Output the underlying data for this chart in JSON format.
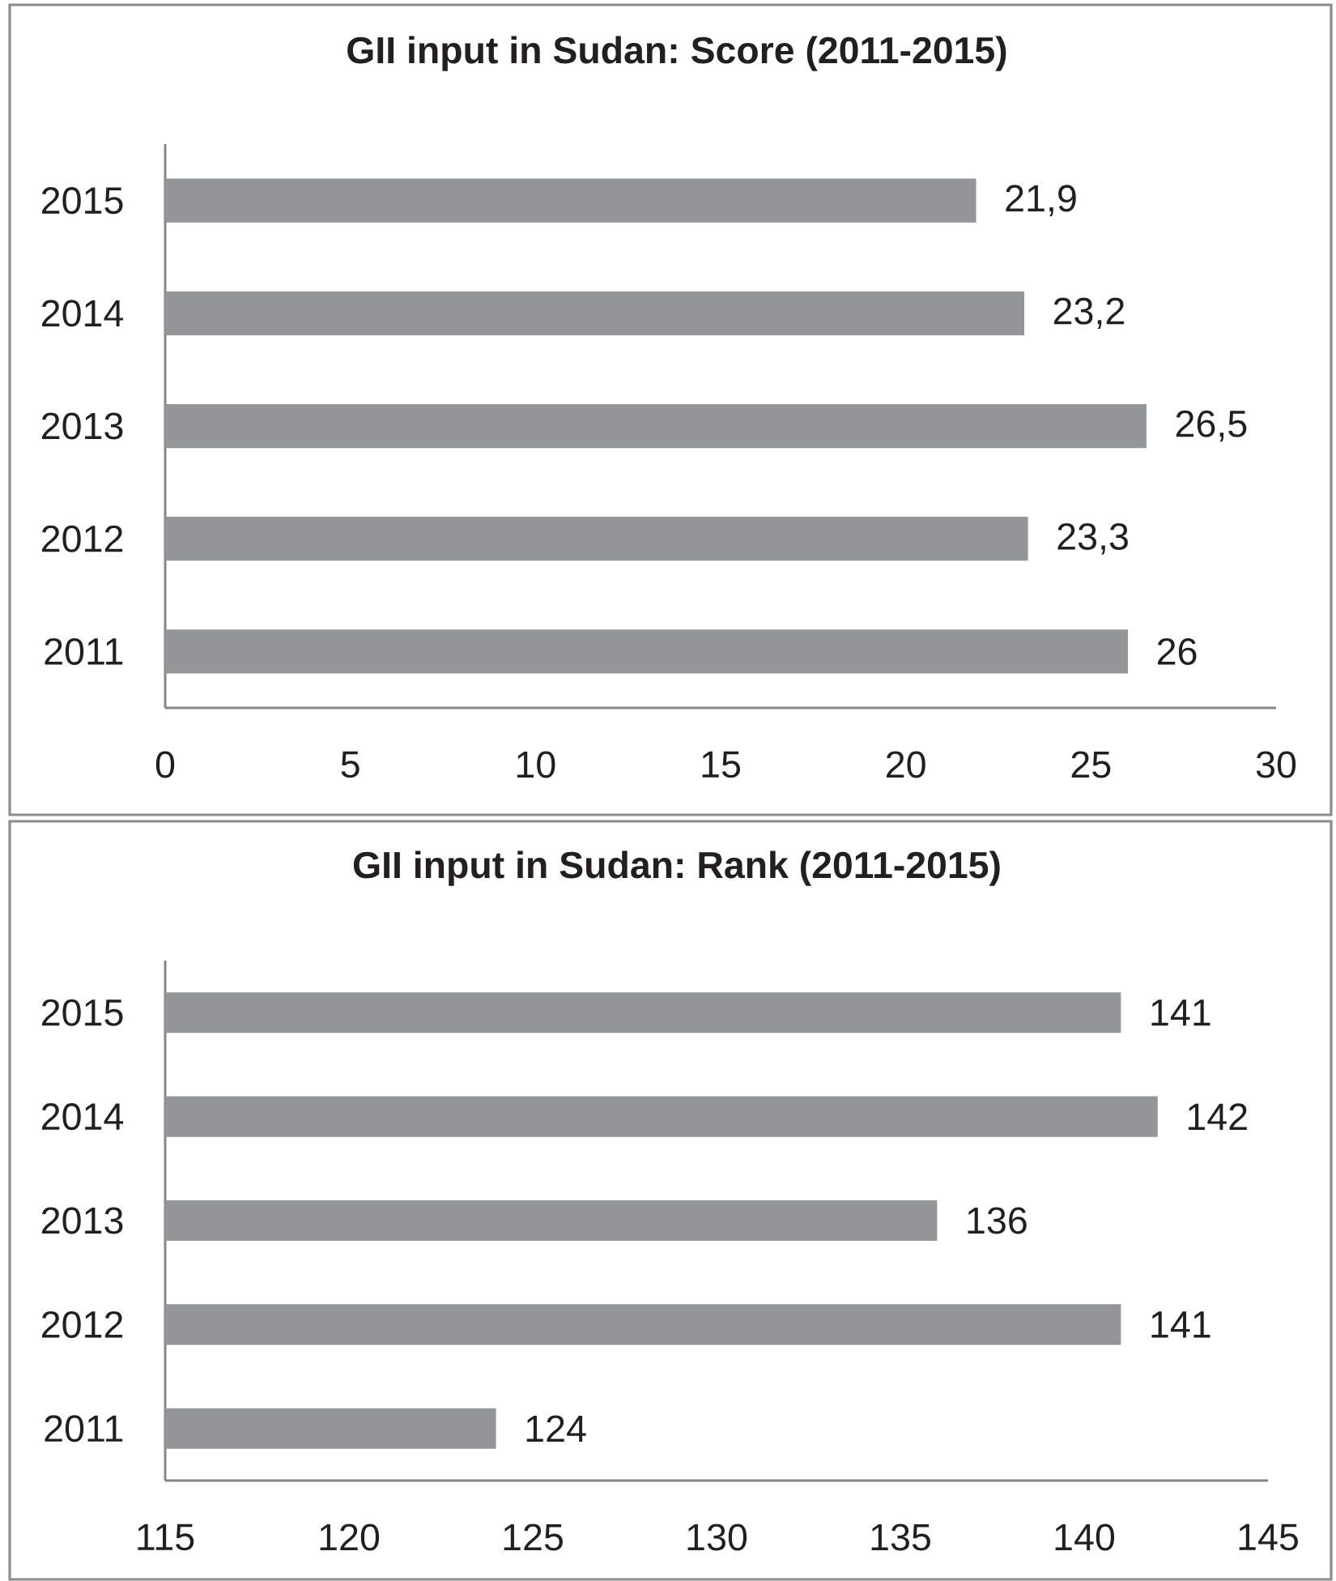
{
  "chart_data": [
    {
      "type": "bar",
      "orientation": "horizontal",
      "title": "GII input in Sudan: Score (2011-2015)",
      "categories": [
        "2015",
        "2014",
        "2013",
        "2012",
        "2011"
      ],
      "values": [
        21.9,
        23.2,
        26.5,
        23.3,
        26
      ],
      "value_labels": [
        "21,9",
        "23,2",
        "26,5",
        "23,3",
        "26"
      ],
      "color": "#939598",
      "xlim": [
        0,
        30
      ],
      "xticks": [
        0,
        5,
        10,
        15,
        20,
        25,
        30
      ]
    },
    {
      "type": "bar",
      "orientation": "horizontal",
      "title": "GII input in Sudan: Rank (2011-2015)",
      "categories": [
        "2015",
        "2014",
        "2013",
        "2012",
        "2011"
      ],
      "values": [
        141,
        142,
        136,
        141,
        124
      ],
      "data_labels": true,
      "color": "#939598",
      "xlim": [
        115,
        145
      ],
      "xticks": [
        115,
        120,
        125,
        130,
        135,
        140,
        145
      ]
    }
  ]
}
